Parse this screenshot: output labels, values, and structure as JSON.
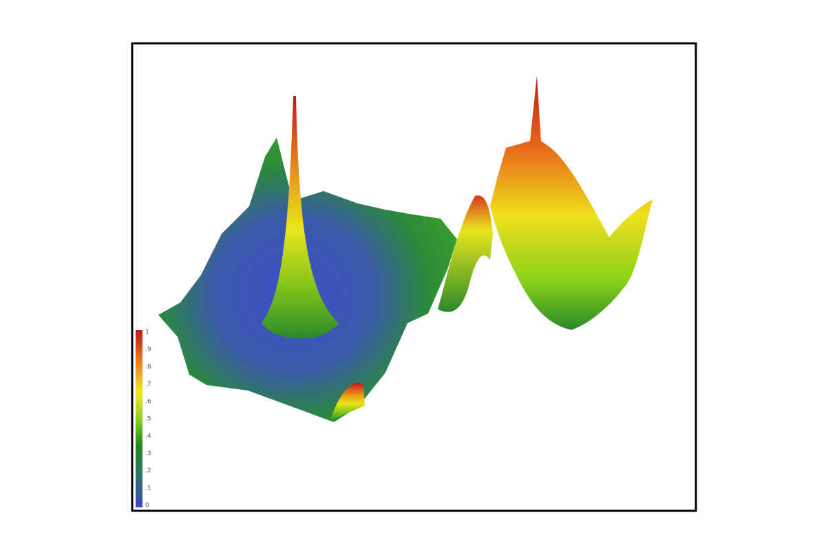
{
  "colorbar": {
    "labels": [
      "1",
      ".9",
      ".8",
      ".7",
      ".6",
      ".5",
      ".4",
      ".3",
      ".2",
      ".1",
      "0"
    ]
  }
}
